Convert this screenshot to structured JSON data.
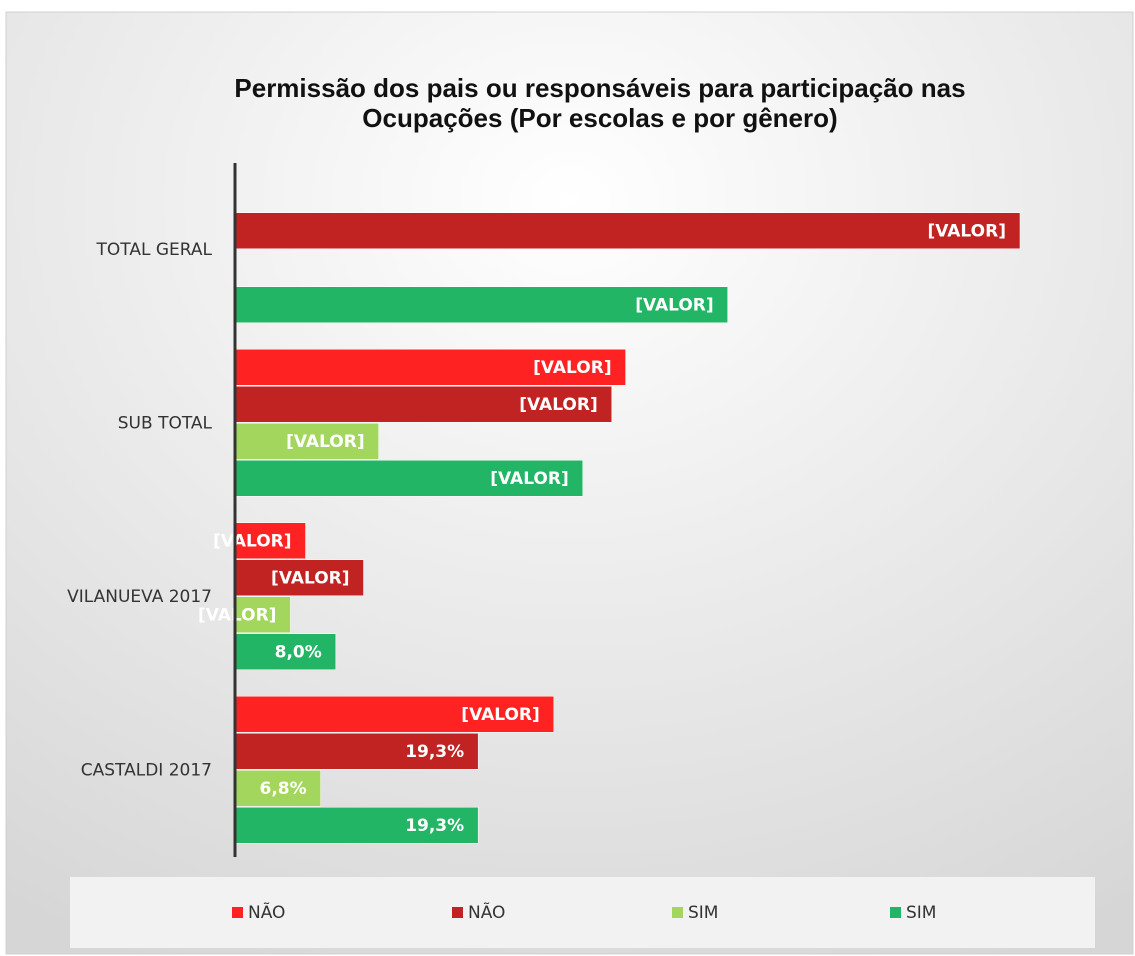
{
  "chart_data": {
    "type": "barh",
    "title": [
      "Permissão dos pais ou responsáveis para participação nas",
      "Ocupações (Por escolas e por gênero)"
    ],
    "categories": [
      "CASTALDI 2017",
      "VILANUEVA 2017",
      "SUB TOTAL",
      "TOTAL GERAL"
    ],
    "series": [
      {
        "name": "NÃO",
        "color": "#ff2222",
        "values": [
          25.3,
          5.6,
          31.0,
          null
        ],
        "value_labels": [
          "[VALOR]",
          "[VALOR]",
          "[VALOR]",
          null
        ]
      },
      {
        "name": "NÃO",
        "color": "#c12222",
        "values": [
          19.3,
          10.2,
          29.9,
          62.3
        ],
        "value_labels": [
          "19,3%",
          "[VALOR]",
          "[VALOR]",
          "[VALOR]"
        ]
      },
      {
        "name": "SIM",
        "color": "#a3d65c",
        "values": [
          6.8,
          4.4,
          11.4,
          null
        ],
        "value_labels": [
          "6,8%",
          "[VALOR]",
          "[VALOR]",
          null
        ]
      },
      {
        "name": "SIM",
        "color": "#22b566",
        "values": [
          19.3,
          8.0,
          27.6,
          39.1
        ],
        "value_labels": [
          "19,3%",
          "8,0%",
          "[VALOR]",
          "[VALOR]"
        ]
      }
    ],
    "xlim": [
      0,
      65
    ],
    "legend": "bottom"
  }
}
